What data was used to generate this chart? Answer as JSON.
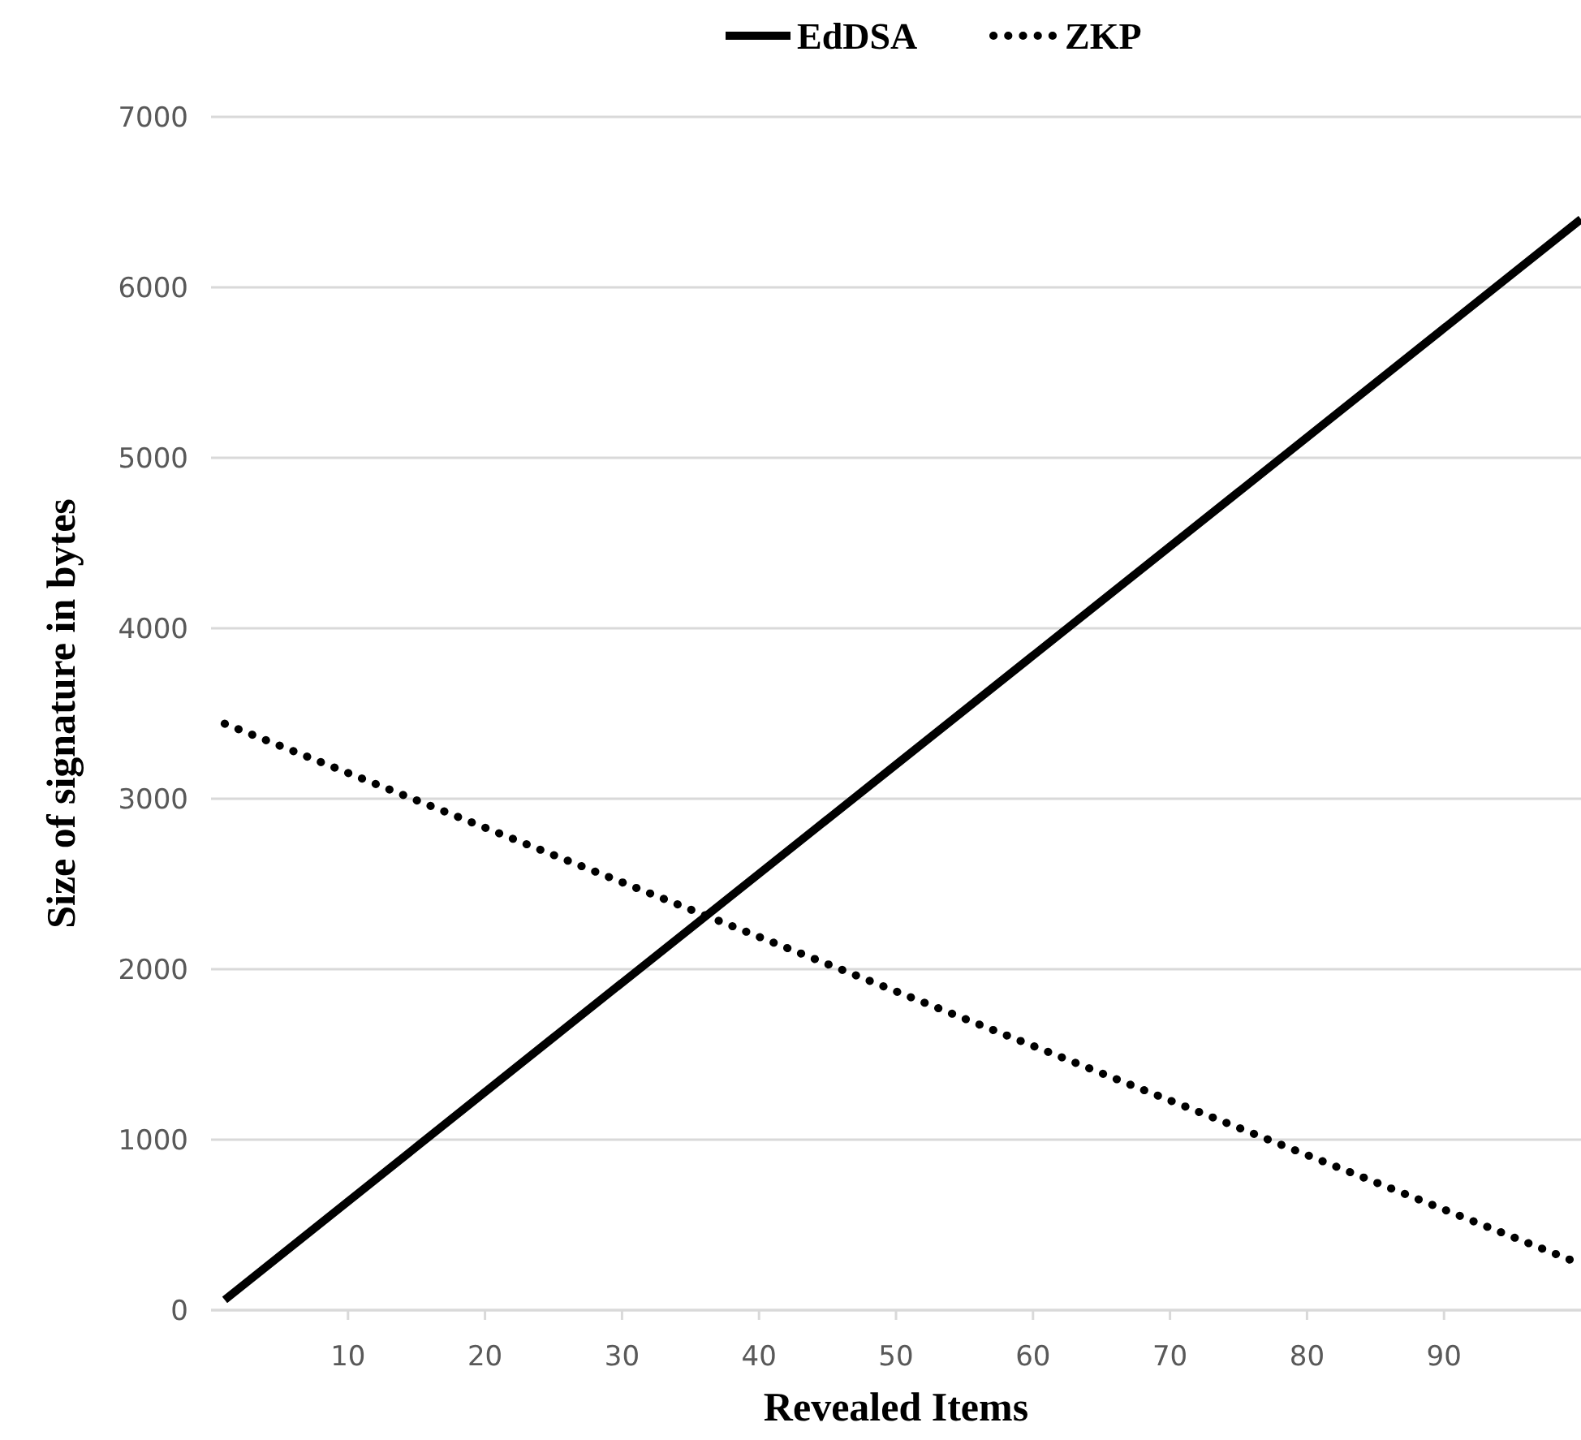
{
  "chart_data": {
    "type": "line",
    "xlabel": "Revealed Items",
    "ylabel": "Size of signature in bytes",
    "xlim": [
      0,
      100
    ],
    "xticks": [
      10,
      20,
      30,
      40,
      50,
      60,
      70,
      80,
      90
    ],
    "ylim": [
      0,
      7000
    ],
    "yticks": [
      0,
      1000,
      2000,
      3000,
      4000,
      5000,
      6000,
      7000
    ],
    "grid": "y",
    "legend": "top",
    "series": [
      {
        "name": "EdDSA",
        "color": "#000000",
        "line_style": "solid",
        "x": [
          1,
          25,
          50,
          75,
          100
        ],
        "values": [
          60,
          1600,
          3200,
          4800,
          6400
        ]
      },
      {
        "name": "ZKP",
        "color": "#000000",
        "line_style": "dotted",
        "x": [
          1,
          25,
          50,
          75,
          100
        ],
        "values": [
          3440,
          2670,
          1870,
          1070,
          270
        ]
      }
    ]
  }
}
